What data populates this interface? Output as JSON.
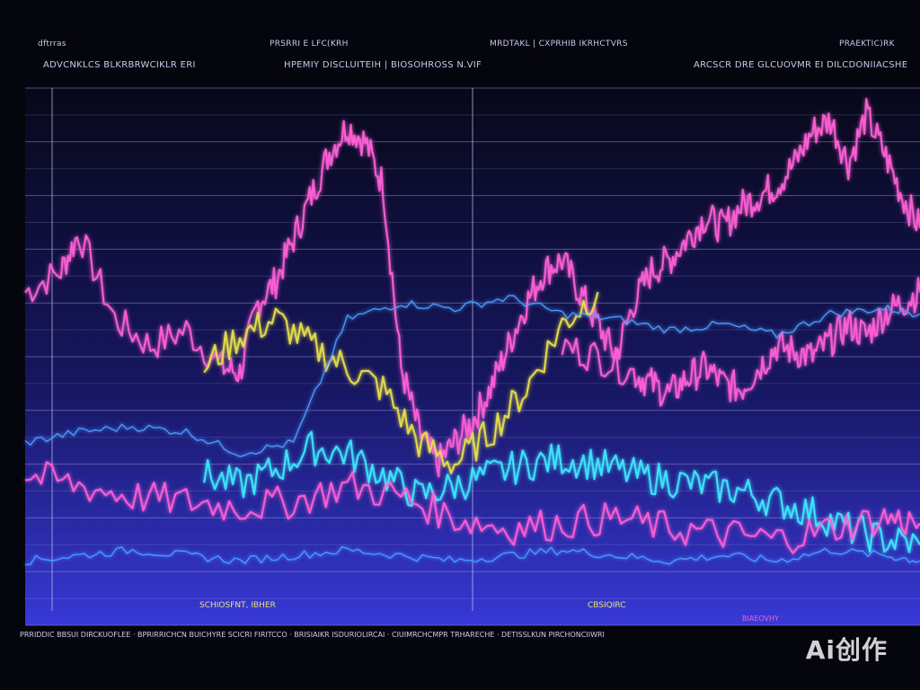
{
  "header": {
    "row1": [
      "dftrras",
      "PRSRRI E LFC(KRH",
      "MRDTAKL | CXPRHIB IKRHCTVRS",
      "PRAEKTIC)RK"
    ],
    "row2": [
      "ADVCNKLCS BLKRBRWCIKLR ERI",
      "HPEMIY DISCLUITEIH | BIOSOHROSS N.VIF",
      "ARCSCR DRE GLCUOVMR EI DILCDONIIACSHE"
    ]
  },
  "footer": {
    "labels": [
      "SCHIOSFNT, IBHER",
      "CBSIQIRC",
      "BIAEOVHY"
    ],
    "axis_text": "PRRIDDIC BBSUI DIRCKUOFLEE · BPRIRRICHCN BUICHYRE SCICRI FIRITCCO · BRISIAIKR ISDURIOLIRCAI · CIUIMRCHCMPR TRHARECHE · DETISSLKUN PIRCHONCIIWRI"
  },
  "watermark": "Ai创作",
  "colors": {
    "background": "#05050d",
    "gradient_bottom": "#3838d8",
    "grid": "#8a8ac8",
    "pink": "#ff5fd6",
    "yellow": "#e8e04a",
    "cyan": "#3ee8ff",
    "blue": "#4aa0ff"
  },
  "chart_data": {
    "type": "line",
    "x_range": [
      0,
      100
    ],
    "y_range": [
      0,
      100
    ],
    "grid": true,
    "series": [
      {
        "color_key": "pink",
        "x": [
          0,
          4,
          6,
          10,
          14,
          18,
          22,
          24,
          26,
          28,
          30,
          32,
          34,
          36,
          38,
          40,
          42,
          44,
          46,
          48,
          50,
          52,
          54,
          56,
          58,
          60,
          62,
          64,
          66,
          68,
          70,
          72,
          74,
          76,
          78,
          80,
          82,
          84,
          86,
          88,
          90,
          92,
          94,
          96,
          98,
          100
        ],
        "y": [
          62,
          66,
          73,
          57,
          52,
          55,
          48,
          47,
          60,
          64,
          72,
          80,
          88,
          93,
          90,
          82,
          48,
          36,
          30,
          34,
          38,
          44,
          52,
          60,
          66,
          68,
          62,
          56,
          50,
          60,
          66,
          68,
          72,
          76,
          74,
          78,
          80,
          82,
          86,
          92,
          94,
          86,
          95,
          88,
          80,
          74
        ]
      },
      {
        "color_key": "pink",
        "x": [
          60,
          64,
          68,
          70,
          72,
          74,
          76,
          78,
          80,
          82,
          84,
          86,
          88,
          90,
          92,
          94,
          96,
          98,
          100
        ],
        "y": [
          52,
          50,
          47,
          45,
          43,
          46,
          48,
          45,
          44,
          48,
          52,
          51,
          50,
          53,
          56,
          54,
          58,
          60,
          62
        ]
      },
      {
        "color_key": "yellow",
        "x": [
          20,
          24,
          28,
          32,
          36,
          40,
          44,
          48,
          52,
          56,
          60,
          64
        ],
        "y": [
          48,
          54,
          57,
          52,
          48,
          44,
          34,
          30,
          36,
          44,
          56,
          62
        ]
      },
      {
        "color_key": "cyan",
        "x": [
          20,
          24,
          28,
          32,
          36,
          40,
          44,
          48,
          52,
          56,
          60,
          64,
          68,
          72,
          76,
          80,
          84,
          88,
          92,
          96,
          100
        ],
        "y": [
          28,
          26,
          29,
          33,
          32,
          28,
          24,
          26,
          28,
          30,
          31,
          30,
          28,
          27,
          26,
          25,
          23,
          21,
          18,
          16,
          15
        ]
      },
      {
        "color_key": "blue",
        "x": [
          0,
          6,
          12,
          18,
          24,
          30,
          36,
          42,
          48,
          54,
          60,
          66,
          72,
          78,
          84,
          90,
          96,
          100
        ],
        "y": [
          34,
          36,
          37,
          36,
          32,
          34,
          57,
          60,
          59,
          61,
          58,
          57,
          55,
          56,
          54,
          58,
          59,
          58
        ]
      },
      {
        "color_key": "blue",
        "x": [
          0,
          6,
          12,
          18,
          24,
          30,
          36,
          42,
          48,
          54,
          60,
          66,
          72,
          78,
          84,
          90,
          96,
          100
        ],
        "y": [
          12,
          13,
          14,
          13,
          12,
          13,
          14,
          13,
          12,
          13,
          14,
          13,
          12,
          13,
          12,
          14,
          13,
          12
        ]
      },
      {
        "color_key": "pink",
        "x": [
          0,
          6,
          12,
          18,
          24,
          30,
          36,
          42,
          48,
          54,
          60,
          66,
          72,
          78,
          84,
          90,
          96,
          100
        ],
        "y": [
          28,
          26,
          24,
          23,
          22,
          23,
          26,
          24,
          20,
          18,
          19,
          20,
          18,
          17,
          16,
          18,
          20,
          19
        ]
      }
    ]
  }
}
